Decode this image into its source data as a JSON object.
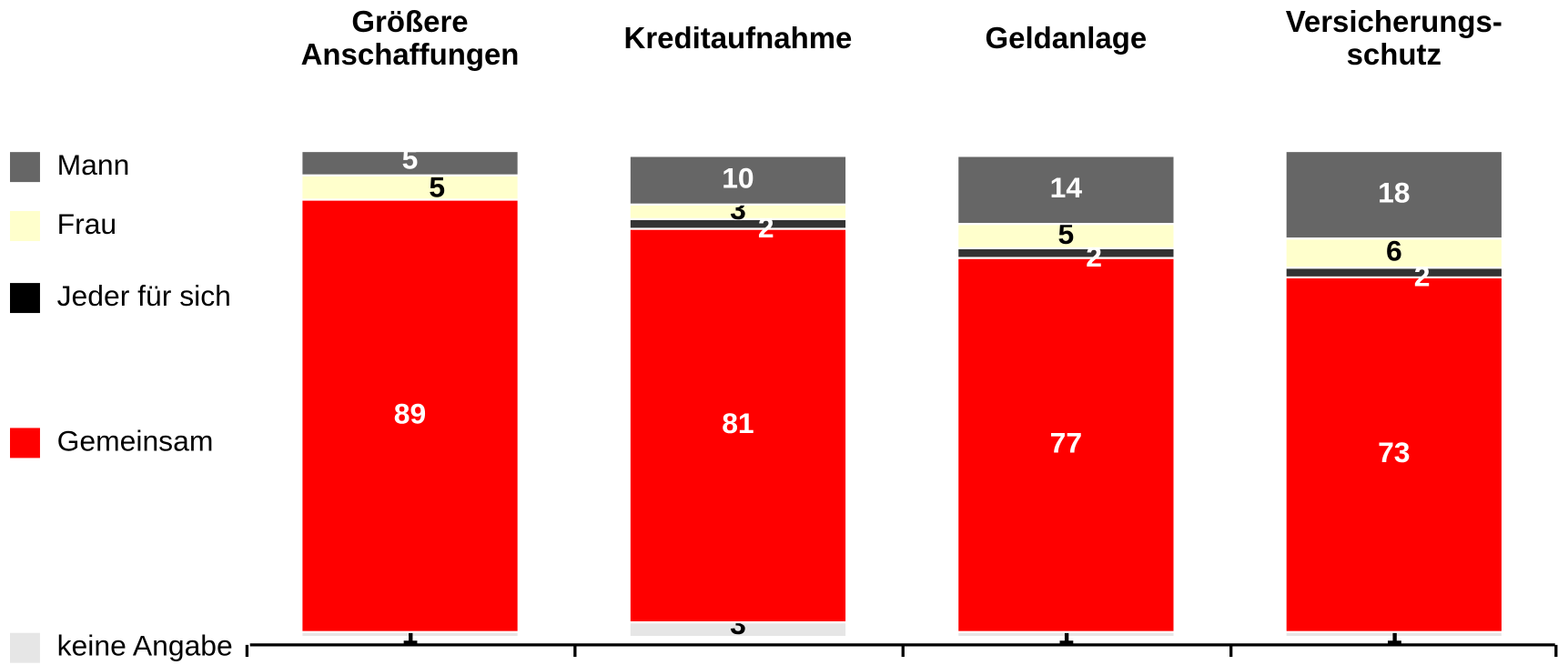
{
  "chart_data": {
    "type": "stacked_bar",
    "categories": [
      "Größere\nAnschaffungen",
      "Kreditaufnahme",
      "Geldanlage",
      "Versicherungs-\nschutz"
    ],
    "series": [
      {
        "name": "keine Angabe",
        "color": "#e6e6e6",
        "values": [
          1,
          3,
          1,
          1
        ]
      },
      {
        "name": "Gemeinsam",
        "color": "#ff0000",
        "values": [
          89,
          81,
          77,
          73
        ]
      },
      {
        "name": "Jeder für sich",
        "color": "#333333",
        "values": [
          null,
          2,
          2,
          2
        ]
      },
      {
        "name": "Frau",
        "color": "#ffffcc",
        "values": [
          5,
          3,
          5,
          6
        ]
      },
      {
        "name": "Mann",
        "color": "#666666",
        "values": [
          5,
          10,
          14,
          18
        ]
      }
    ],
    "ylim": [
      0,
      100
    ]
  }
}
